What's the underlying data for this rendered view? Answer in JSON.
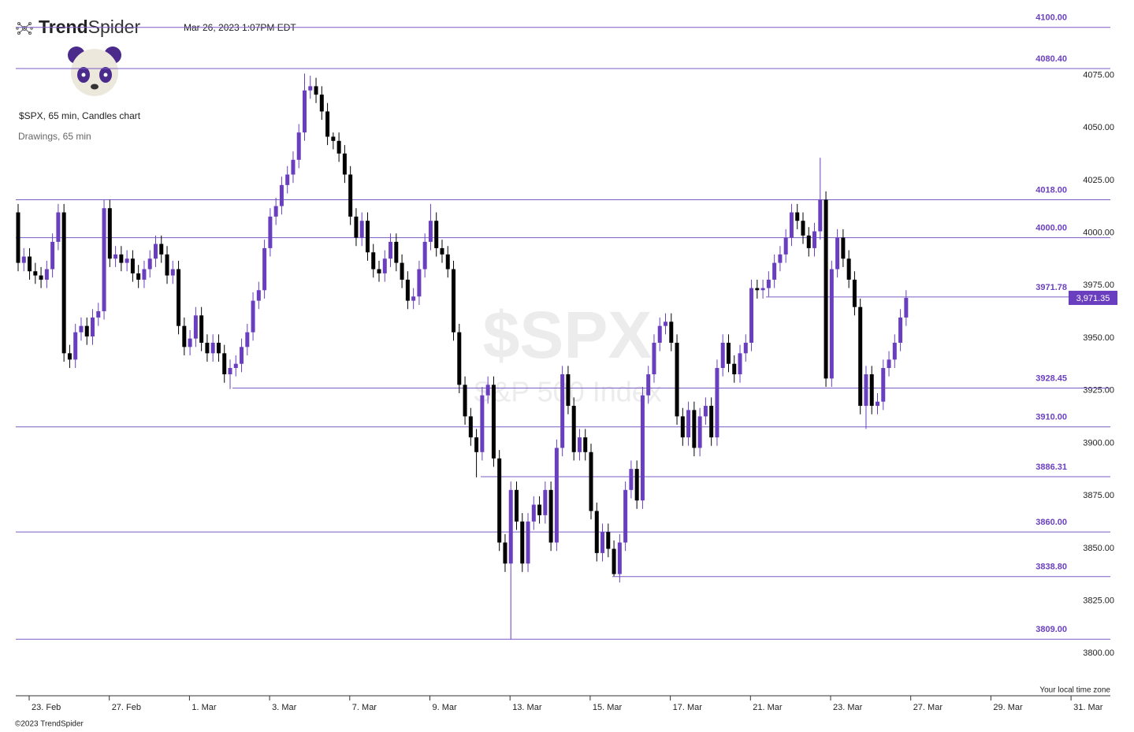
{
  "chart_data": {
    "type": "candlestick",
    "brand_bold": "Trend",
    "brand_light": "Spider",
    "timestamp": "Mar 26, 2023 1:07PM EDT",
    "title": "$SPX, 65 min, Candles chart",
    "subtitle": "Drawings, 65 min",
    "watermark": "$SPX",
    "watermark_subtitle": "S&P 500 Index",
    "time_zone_note": "Your local time zone",
    "footer": "©2023 TrendSpider",
    "up_color": "#6a3fbf",
    "down_color": "#000000",
    "level_color": "#7a5cc4",
    "ylim": [
      3787,
      4113
    ],
    "yticks": [
      {
        "value": 4075,
        "label": "4075.00"
      },
      {
        "value": 4050,
        "label": "4050.00"
      },
      {
        "value": 4025,
        "label": "4025.00"
      },
      {
        "value": 4000,
        "label": "4000.00"
      },
      {
        "value": 3975,
        "label": "3975.00"
      },
      {
        "value": 3950,
        "label": "3950.00"
      },
      {
        "value": 3925,
        "label": "3925.00"
      },
      {
        "value": 3900,
        "label": "3900.00"
      },
      {
        "value": 3875,
        "label": "3875.00"
      },
      {
        "value": 3850,
        "label": "3850.00"
      },
      {
        "value": 3825,
        "label": "3825.00"
      },
      {
        "value": 3800,
        "label": "3800.00"
      }
    ],
    "xtick_labels": [
      "23. Feb",
      "27. Feb",
      "1. Mar",
      "3. Mar",
      "7. Mar",
      "9. Mar",
      "13. Mar",
      "15. Mar",
      "17. Mar",
      "21. Mar",
      "23. Mar",
      "27. Mar",
      "29. Mar",
      "31. Mar"
    ],
    "levels": [
      {
        "value": 4100,
        "label": "4100.00"
      },
      {
        "value": 4080.4,
        "label": "4080.40"
      },
      {
        "value": 4018,
        "label": "4018.00"
      },
      {
        "value": 4000,
        "label": "4000.00"
      },
      {
        "value": 3971.78,
        "label": "3971.78"
      },
      {
        "value": 3928.45,
        "label": "3928.45"
      },
      {
        "value": 3910,
        "label": "3910.00"
      },
      {
        "value": 3886.31,
        "label": "3886.31"
      },
      {
        "value": 3860,
        "label": "3860.00"
      },
      {
        "value": 3838.8,
        "label": "3838.80"
      },
      {
        "value": 3809,
        "label": "3809.00"
      }
    ],
    "last_price": {
      "value": 3971.35,
      "label": "3,971.35"
    },
    "open": [
      4012,
      3988,
      3991,
      3984,
      3982,
      3980,
      3985,
      3998,
      4012,
      3945,
      3942,
      3955,
      3958,
      3953,
      3962,
      3965,
      4014,
      3990,
      3992,
      3988,
      3990,
      3983,
      3980,
      3985,
      3990,
      3997,
      3992,
      3982,
      3985,
      3958,
      3948,
      3952,
      3963,
      3950,
      3945,
      3950,
      3945,
      3935,
      3938,
      3940,
      3948,
      3955,
      3970,
      3975,
      3995,
      4010,
      4015,
      4025,
      4030,
      4037,
      4050,
      4070,
      4072,
      4068,
      4060,
      4048,
      4046,
      4040,
      4030,
      4010,
      4000,
      4008,
      3993,
      3985,
      3983,
      3990,
      3998,
      3988,
      3980,
      3970,
      3972,
      3985,
      3998,
      4008,
      3995,
      3992,
      3985,
      3955,
      3930,
      3915,
      3905,
      3898,
      3925,
      3930,
      3895,
      3855,
      3845,
      3880,
      3865,
      3845,
      3865,
      3873,
      3868,
      3880,
      3855,
      3900,
      3935,
      3920,
      3898,
      3905,
      3898,
      3870,
      3850,
      3860,
      3852,
      3840,
      3855,
      3880,
      3890,
      3875,
      3925,
      3935,
      3950,
      3958,
      3960,
      3950,
      3915,
      3905,
      3918,
      3900,
      3915,
      3920,
      3905,
      3938,
      3950,
      3940,
      3935,
      3945,
      3950,
      3976,
      3975,
      3976,
      3980,
      3988,
      3992,
      4000,
      4012,
      4008,
      4001,
      3995,
      4003,
      4018,
      3933,
      3985,
      4000,
      3990,
      3980,
      3967,
      3920,
      3935,
      3920,
      3922,
      3938,
      3942,
      3950,
      3962
    ],
    "high": [
      4016,
      3995,
      3995,
      3988,
      3986,
      3989,
      4002,
      4016,
      4016,
      3949,
      3959,
      3962,
      3962,
      3966,
      3969,
      4018,
      4018,
      3996,
      3996,
      3994,
      3994,
      3987,
      3989,
      3994,
      4001,
      4001,
      3996,
      3989,
      3989,
      3962,
      3956,
      3967,
      3967,
      3954,
      3954,
      3954,
      3949,
      3942,
      3944,
      3952,
      3959,
      3974,
      3979,
      3999,
      4014,
      4019,
      4029,
      4034,
      4041,
      4054,
      4078,
      4077,
      4076,
      4072,
      4064,
      4050,
      4050,
      4044,
      4034,
      4014,
      4012,
      4012,
      3997,
      3989,
      3994,
      4002,
      4002,
      3992,
      3984,
      3976,
      3989,
      4002,
      4016,
      4012,
      3999,
      3996,
      3989,
      3959,
      3934,
      3919,
      3909,
      3929,
      3934,
      3934,
      3899,
      3859,
      3884,
      3884,
      3869,
      3869,
      3877,
      3877,
      3884,
      3884,
      3904,
      3939,
      3939,
      3924,
      3909,
      3909,
      3902,
      3874,
      3864,
      3864,
      3856,
      3859,
      3884,
      3894,
      3894,
      3929,
      3939,
      3954,
      3962,
      3964,
      3964,
      3954,
      3919,
      3922,
      3922,
      3919,
      3924,
      3924,
      3942,
      3954,
      3954,
      3944,
      3949,
      3954,
      3980,
      3980,
      3980,
      3984,
      3992,
      3996,
      4004,
      4016,
      4016,
      4012,
      4005,
      4007,
      4038,
      4022,
      3989,
      4004,
      4004,
      3994,
      3984,
      3971,
      3939,
      3939,
      3926,
      3942,
      3946,
      3954,
      3966,
      3975
    ],
    "low": [
      3984,
      3984,
      3980,
      3978,
      3976,
      3976,
      3981,
      3994,
      3941,
      3938,
      3938,
      3951,
      3949,
      3949,
      3958,
      3961,
      3986,
      3986,
      3984,
      3984,
      3979,
      3976,
      3976,
      3981,
      3986,
      3988,
      3978,
      3978,
      3954,
      3944,
      3944,
      3948,
      3946,
      3941,
      3941,
      3941,
      3931,
      3928,
      3934,
      3936,
      3944,
      3951,
      3966,
      3971,
      3991,
      4006,
      4011,
      4021,
      4026,
      4033,
      4046,
      4066,
      4064,
      4056,
      4044,
      4042,
      4036,
      4026,
      4006,
      3996,
      3996,
      3989,
      3981,
      3979,
      3979,
      3986,
      3984,
      3976,
      3966,
      3966,
      3968,
      3981,
      3994,
      3991,
      3988,
      3981,
      3951,
      3926,
      3911,
      3901,
      3886,
      3894,
      3921,
      3891,
      3851,
      3841,
      3809,
      3861,
      3841,
      3841,
      3861,
      3864,
      3864,
      3851,
      3851,
      3896,
      3916,
      3894,
      3894,
      3894,
      3866,
      3846,
      3846,
      3848,
      3839,
      3836,
      3851,
      3876,
      3871,
      3871,
      3921,
      3931,
      3946,
      3954,
      3946,
      3911,
      3901,
      3901,
      3896,
      3896,
      3911,
      3901,
      3901,
      3934,
      3936,
      3931,
      3931,
      3941,
      3946,
      3971,
      3971,
      3972,
      3976,
      3984,
      3988,
      3996,
      4004,
      3997,
      3991,
      3991,
      3999,
      3929,
      3929,
      3981,
      3986,
      3976,
      3963,
      3916,
      3909,
      3916,
      3916,
      3918,
      3934,
      3938,
      3946,
      3958
    ],
    "close": [
      3988,
      3991,
      3984,
      3982,
      3980,
      3985,
      3998,
      4012,
      3945,
      3942,
      3955,
      3958,
      3953,
      3962,
      3965,
      4014,
      3990,
      3992,
      3988,
      3990,
      3983,
      3980,
      3985,
      3990,
      3997,
      3992,
      3982,
      3985,
      3958,
      3948,
      3952,
      3963,
      3950,
      3945,
      3950,
      3945,
      3935,
      3938,
      3940,
      3948,
      3955,
      3970,
      3975,
      3995,
      4010,
      4015,
      4025,
      4030,
      4037,
      4050,
      4070,
      4072,
      4068,
      4060,
      4048,
      4046,
      4040,
      4030,
      4010,
      4000,
      4008,
      3993,
      3985,
      3983,
      3990,
      3998,
      3988,
      3980,
      3970,
      3972,
      3985,
      3998,
      4008,
      3995,
      3992,
      3985,
      3955,
      3930,
      3915,
      3905,
      3898,
      3925,
      3930,
      3895,
      3855,
      3845,
      3880,
      3865,
      3845,
      3865,
      3873,
      3868,
      3880,
      3855,
      3900,
      3935,
      3920,
      3898,
      3905,
      3898,
      3870,
      3850,
      3860,
      3852,
      3840,
      3855,
      3880,
      3890,
      3875,
      3925,
      3935,
      3950,
      3958,
      3960,
      3950,
      3915,
      3905,
      3918,
      3900,
      3915,
      3920,
      3905,
      3938,
      3950,
      3940,
      3935,
      3945,
      3950,
      3976,
      3975,
      3976,
      3980,
      3988,
      3992,
      4000,
      4012,
      4008,
      4001,
      3995,
      4003,
      4018,
      3933,
      3985,
      4000,
      3990,
      3980,
      3967,
      3920,
      3935,
      3920,
      3922,
      3938,
      3942,
      3950,
      3962,
      3971.35
    ]
  }
}
